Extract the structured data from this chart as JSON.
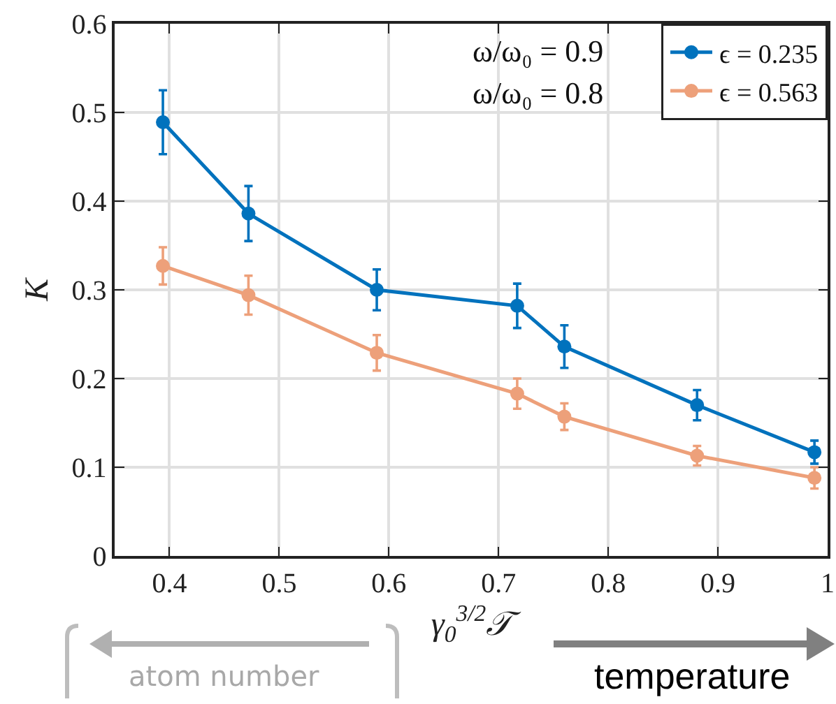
{
  "chart_data": {
    "type": "line",
    "xlabel": "γ$_{0}$$^{3/2}$𝒯",
    "ylabel": "K",
    "xlim": [
      0.35,
      1.0
    ],
    "xticks": [
      0.4,
      0.5,
      0.6,
      0.7,
      0.8,
      0.9,
      1
    ],
    "ylim": [
      0,
      0.6
    ],
    "yticks": [
      0,
      0.1,
      0.2,
      0.3,
      0.4,
      0.5,
      0.6
    ],
    "grid": true,
    "legend": "top right",
    "marker": "circle",
    "line_style": "solid",
    "series": [
      {
        "name": "ϵ = 0.235",
        "color": "#0072bd",
        "x": [
          0.394,
          0.472,
          0.589,
          0.717,
          0.76,
          0.881,
          0.988
        ],
        "values": [
          0.489,
          0.386,
          0.3,
          0.282,
          0.236,
          0.17,
          0.117
        ],
        "errors": [
          0.036,
          0.031,
          0.023,
          0.025,
          0.024,
          0.017,
          0.013
        ]
      },
      {
        "name": "ϵ = 0.563",
        "color": "#eda07a",
        "x": [
          0.394,
          0.472,
          0.589,
          0.717,
          0.76,
          0.881,
          0.988
        ],
        "values": [
          0.327,
          0.294,
          0.229,
          0.183,
          0.157,
          0.113,
          0.088
        ],
        "errors": [
          0.021,
          0.022,
          0.02,
          0.017,
          0.015,
          0.011,
          0.012
        ]
      }
    ],
    "annotations": [
      "ω/ω₀ = 0.9",
      "ω/ω₀ = 0.8",
      "atom number",
      "temperature"
    ]
  }
}
